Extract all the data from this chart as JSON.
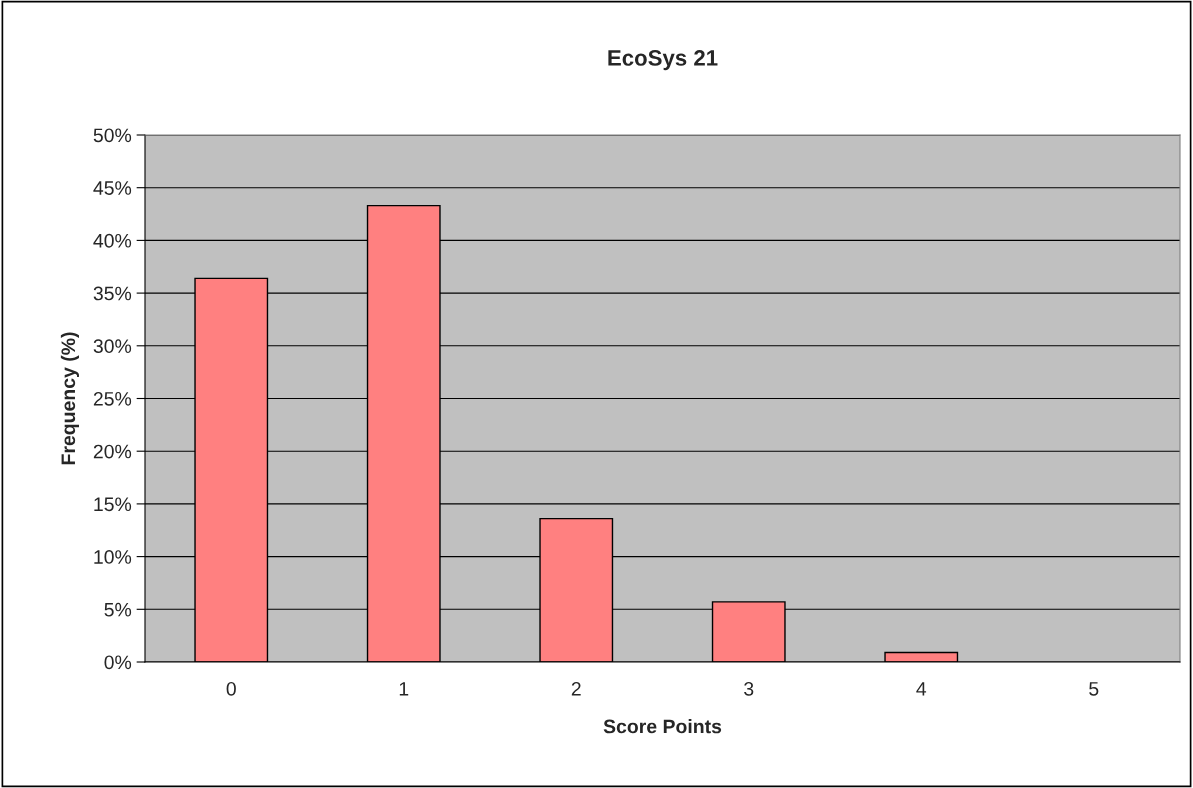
{
  "chart_data": {
    "type": "bar",
    "title": "EcoSys 21",
    "xlabel": "Score Points",
    "ylabel": "Frequency (%)",
    "categories": [
      "0",
      "1",
      "2",
      "3",
      "4",
      "5"
    ],
    "values": [
      36.4,
      43.3,
      13.6,
      5.7,
      0.9,
      null
    ],
    "color": "#ff8080",
    "ylim": [
      0,
      50
    ],
    "yticks": [
      {
        "value": 0,
        "label": "0%"
      },
      {
        "value": 5,
        "label": "5%"
      },
      {
        "value": 10,
        "label": "10%"
      },
      {
        "value": 15,
        "label": "15%"
      },
      {
        "value": 20,
        "label": "20%"
      },
      {
        "value": 25,
        "label": "25%"
      },
      {
        "value": 30,
        "label": "30%"
      },
      {
        "value": 35,
        "label": "35%"
      },
      {
        "value": 40,
        "label": "40%"
      },
      {
        "value": 45,
        "label": "45%"
      },
      {
        "value": 50,
        "label": "50%"
      }
    ],
    "grid": "y",
    "legend": false
  }
}
